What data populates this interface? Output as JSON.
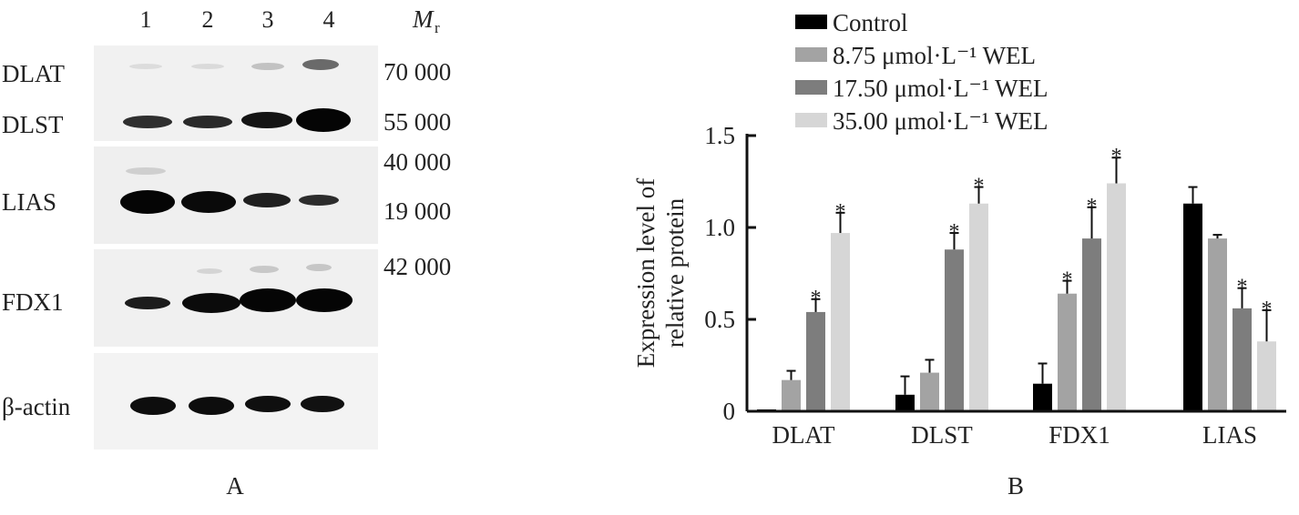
{
  "panel_a": {
    "label": "A",
    "lanes": [
      "1",
      "2",
      "3",
      "4"
    ],
    "mr_label": "M",
    "mr_sub": "r",
    "proteins": [
      "DLAT",
      "DLST",
      "LIAS",
      "FDX1",
      "β-actin"
    ],
    "markers": [
      "70 000",
      "55 000",
      "40 000",
      "19 000",
      "42 000"
    ]
  },
  "chart_data": {
    "type": "bar",
    "panel_label": "B",
    "categories": [
      "DLAT",
      "DLST",
      "FDX1",
      "LIAS"
    ],
    "series": [
      {
        "name": "Control",
        "color": "#000000",
        "values": [
          0.01,
          0.09,
          0.15,
          1.13
        ],
        "errors": [
          0.0,
          0.1,
          0.11,
          0.09
        ],
        "sig": [
          false,
          false,
          false,
          false
        ]
      },
      {
        "name": "8.75 μmol·L⁻¹ WEL",
        "color": "#a3a3a3",
        "values": [
          0.17,
          0.21,
          0.64,
          0.94
        ],
        "errors": [
          0.05,
          0.07,
          0.07,
          0.02
        ],
        "sig": [
          false,
          false,
          true,
          false
        ]
      },
      {
        "name": "17.50 μmol·L⁻¹ WEL",
        "color": "#7d7d7d",
        "values": [
          0.54,
          0.88,
          0.94,
          0.56
        ],
        "errors": [
          0.07,
          0.09,
          0.17,
          0.11
        ],
        "sig": [
          true,
          true,
          true,
          true
        ]
      },
      {
        "name": "35.00 μmol·L⁻¹ WEL",
        "color": "#d6d6d6",
        "values": [
          0.97,
          1.13,
          1.24,
          0.38
        ],
        "errors": [
          0.11,
          0.09,
          0.14,
          0.17
        ],
        "sig": [
          true,
          true,
          true,
          true
        ]
      }
    ],
    "ylabel_lines": [
      "Expression level of",
      "relative protein"
    ],
    "ylim": [
      0,
      1.5
    ],
    "yticks": [
      "0",
      "0.5",
      "1.0",
      "1.5"
    ],
    "sig_marker": "*",
    "legend_position": "top",
    "grid": false
  }
}
